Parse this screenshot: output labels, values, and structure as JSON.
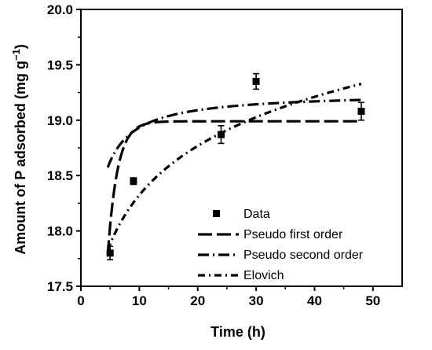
{
  "chart_data": {
    "type": "scatter",
    "xlabel": "Time (h)",
    "ylabel_main": "Amount of P adsorbed (mg g",
    "ylabel_sup": "−1",
    "ylabel_end": ")",
    "xlim": [
      0,
      55
    ],
    "ylim": [
      17.5,
      20.0
    ],
    "xticks": [
      0,
      10,
      20,
      30,
      40,
      50
    ],
    "yticks": [
      17.5,
      18.0,
      18.5,
      19.0,
      19.5,
      20.0
    ],
    "ytick_labels": [
      "17.5",
      "18.0",
      "18.5",
      "19.0",
      "19.5",
      "20.0"
    ],
    "legend_position": "bottom-center",
    "data_series": {
      "name": "Data",
      "x": [
        5,
        9,
        24,
        30,
        48
      ],
      "y": [
        17.8,
        18.45,
        18.87,
        19.35,
        19.08
      ],
      "err": [
        0.06,
        0.03,
        0.08,
        0.07,
        0.08
      ]
    },
    "models": [
      {
        "name": "Pseudo first order",
        "dash": "18,6",
        "width": 3.2,
        "model": "pfo",
        "qe": 18.99,
        "k": 0.6
      },
      {
        "name": "Pseudo second order",
        "dash": "14,5,2,5",
        "width": 3.2,
        "model": "pso",
        "qe": 19.25,
        "k": 0.31
      },
      {
        "name": "Elovich",
        "dash": "9,5,2,5",
        "width": 3.2,
        "model": "elovich",
        "a": 16.85,
        "b": 0.64
      }
    ]
  }
}
